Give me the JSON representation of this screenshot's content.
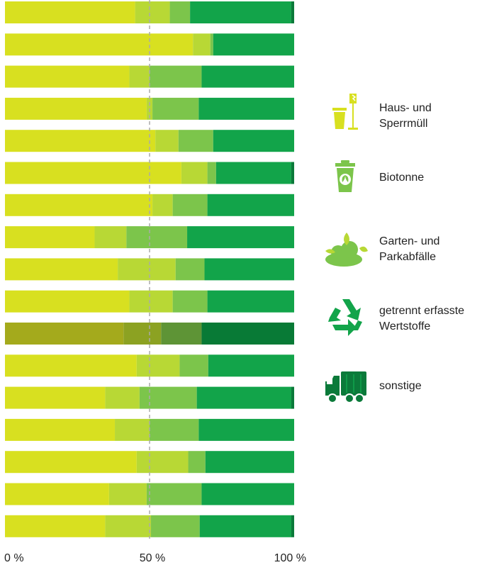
{
  "chart_data": {
    "type": "bar",
    "orientation": "horizontal",
    "stacked": true,
    "normalized": true,
    "xlim": [
      0,
      100
    ],
    "xticks": [
      "0 %",
      "50 %",
      "100 %"
    ],
    "reference_line": 50,
    "highlighted_row": 10,
    "series": [
      {
        "name": "Haus- und\nSperrmüll",
        "color": "#d8e020",
        "values": [
          45,
          65,
          43,
          49,
          52,
          61,
          51,
          31,
          39,
          43,
          41,
          46,
          35,
          38,
          46,
          36,
          35
        ]
      },
      {
        "name": "Biotonne",
        "color": "#b8d835",
        "values": [
          12,
          6,
          7,
          2,
          8,
          9,
          7,
          11,
          20,
          15,
          13,
          15,
          12,
          12,
          18,
          13,
          16
        ]
      },
      {
        "name": "Garten- und\nParkabfälle",
        "color": "#7cc54b",
        "values": [
          7,
          1,
          18,
          16,
          12,
          3,
          12,
          21,
          10,
          12,
          14,
          10,
          20,
          17,
          6,
          19,
          17
        ]
      },
      {
        "name": "getrennt erfasste\nWertstoffe",
        "color": "#12a44a",
        "values": [
          35,
          28,
          32,
          33,
          28,
          26,
          30,
          37,
          31,
          30,
          32,
          30,
          33,
          33,
          31,
          32,
          32
        ]
      },
      {
        "name": "sonstige",
        "color": "#0b7a3a",
        "values": [
          1,
          0,
          0,
          0,
          0,
          1,
          0,
          0,
          0,
          0,
          0,
          0,
          1,
          0,
          0,
          0,
          1
        ]
      }
    ]
  },
  "legend": [
    {
      "label": "Haus- und\nSperrmüll",
      "icon": "trash-bin-lamp-icon"
    },
    {
      "label": "Biotonne",
      "icon": "bio-bin-icon"
    },
    {
      "label": "Garten- und\nParkabfälle",
      "icon": "garden-shrub-icon"
    },
    {
      "label": "getrennt erfasste\nWertstoffe",
      "icon": "recycling-icon"
    },
    {
      "label": "sonstige",
      "icon": "truck-icon"
    }
  ],
  "colors": {
    "highlight_row": [
      "#a4aa1c",
      "#8ca222",
      "#5e9436",
      "#087a36",
      "#066a30"
    ],
    "reference_line": "#aaaaaa"
  }
}
